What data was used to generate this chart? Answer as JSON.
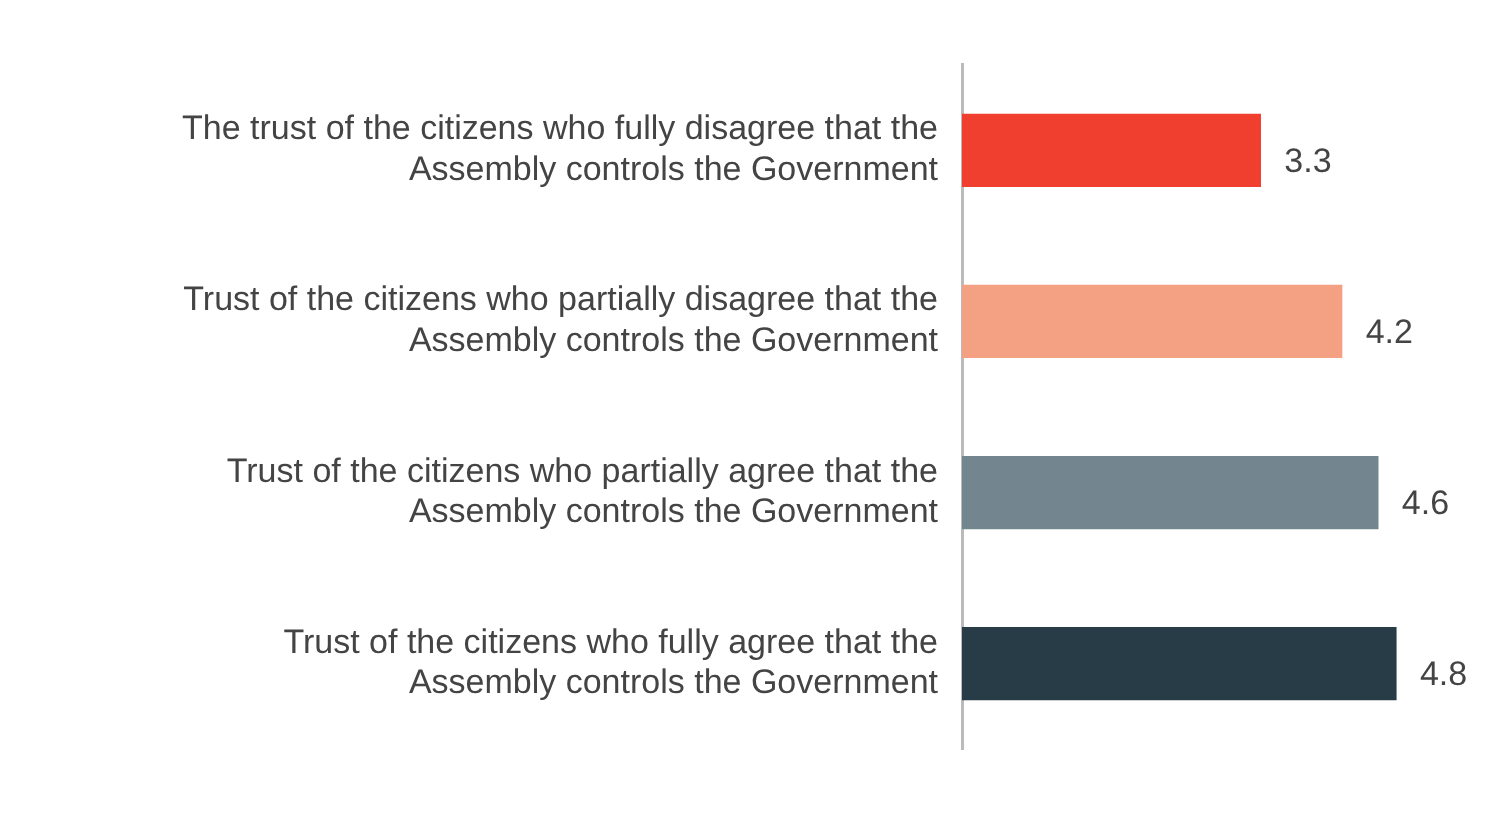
{
  "chart_data": {
    "type": "bar",
    "orientation": "horizontal",
    "categories": [
      "The trust of the citizens who fully disagree that the Assembly controls the Government",
      "Trust of the citizens who partially disagree that the Assembly controls the Government",
      "Trust of the citizens who partially agree that the Assembly controls the Government",
      "Trust of the citizens who fully agree that the Assembly controls the Government"
    ],
    "values": [
      3.3,
      4.2,
      4.6,
      4.8
    ],
    "colors": [
      "#f03e2f",
      "#f4a082",
      "#738690",
      "#283c47"
    ],
    "data_labels": true,
    "legend": false
  }
}
